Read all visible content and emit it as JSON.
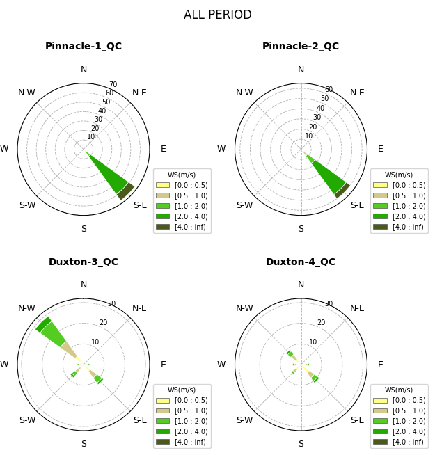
{
  "title": "ALL PERIOD",
  "chart_data": [
    {
      "type": "windrose",
      "title": "Pinnacle-1_QC",
      "stacked": true,
      "grid": true,
      "legend": "lower right",
      "legend_title": "WS(m/s)",
      "categories": [
        "N",
        "N-E",
        "E",
        "S-E",
        "S",
        "S-W",
        "W",
        "N-W"
      ],
      "ylim": [
        0,
        70
      ],
      "yticks": [
        10,
        20,
        30,
        40,
        50,
        60,
        70
      ],
      "series": [
        {
          "name": "[0.0 : 0.5)",
          "color": "#ffff88",
          "values": [
            0,
            0,
            0,
            1,
            0,
            0,
            0,
            0
          ]
        },
        {
          "name": "[0.5 : 1.0)",
          "color": "#d4c98a",
          "values": [
            0,
            0,
            0,
            2,
            0,
            0,
            0,
            0
          ]
        },
        {
          "name": "[1.0 : 2.0)",
          "color": "#55cc22",
          "values": [
            0,
            0,
            0,
            6,
            0,
            0,
            0,
            0
          ]
        },
        {
          "name": "[2.0 : 4.0)",
          "color": "#22aa00",
          "values": [
            0,
            0,
            0,
            50,
            0,
            0,
            0,
            0
          ]
        },
        {
          "name": "[4.0 : inf)",
          "color": "#4a5a1a",
          "values": [
            0,
            0,
            0,
            8,
            0,
            0,
            0,
            0
          ]
        }
      ]
    },
    {
      "type": "windrose",
      "title": "Pinnacle-2_QC",
      "stacked": true,
      "grid": true,
      "legend": "lower right",
      "legend_title": "WS(m/s)",
      "categories": [
        "N",
        "N-E",
        "E",
        "S-E",
        "S",
        "S-W",
        "W",
        "N-W"
      ],
      "ylim": [
        0,
        65
      ],
      "yticks": [
        10,
        20,
        30,
        40,
        50,
        60
      ],
      "series": [
        {
          "name": "[0.0 : 0.5)",
          "color": "#ffff88",
          "values": [
            0,
            0,
            0,
            3,
            0,
            0,
            0,
            0
          ]
        },
        {
          "name": "[0.5 : 1.0)",
          "color": "#d4c98a",
          "values": [
            0,
            0,
            0,
            5,
            0,
            0,
            0,
            0
          ]
        },
        {
          "name": "[1.0 : 2.0)",
          "color": "#55cc22",
          "values": [
            0,
            0,
            0,
            9,
            0,
            0,
            0,
            0
          ]
        },
        {
          "name": "[2.0 : 4.0)",
          "color": "#22aa00",
          "values": [
            0,
            0,
            0,
            38,
            0,
            0,
            0,
            0
          ]
        },
        {
          "name": "[4.0 : inf)",
          "color": "#4a5a1a",
          "values": [
            0,
            0,
            0,
            5,
            0,
            0,
            0,
            0
          ]
        }
      ]
    },
    {
      "type": "windrose",
      "title": "Duxton-3_QC",
      "stacked": true,
      "grid": true,
      "legend": "lower right",
      "legend_title": "WS(m/s)",
      "categories": [
        "N",
        "N-E",
        "E",
        "S-E",
        "S",
        "S-W",
        "W",
        "N-W"
      ],
      "ylim": [
        0,
        32
      ],
      "yticks": [
        10,
        20,
        30
      ],
      "series": [
        {
          "name": "[0.0 : 0.5)",
          "color": "#ffff88",
          "values": [
            0,
            0,
            1,
            4,
            0,
            2,
            1,
            5
          ]
        },
        {
          "name": "[0.5 : 1.0)",
          "color": "#d4c98a",
          "values": [
            0,
            0,
            1,
            4,
            0,
            3,
            1,
            9
          ]
        },
        {
          "name": "[1.0 : 2.0)",
          "color": "#55cc22",
          "values": [
            0,
            0,
            1,
            3,
            0,
            2,
            1,
            12
          ]
        },
        {
          "name": "[2.0 : 4.0)",
          "color": "#22aa00",
          "values": [
            0,
            0,
            0,
            1,
            0,
            1,
            0,
            3
          ]
        },
        {
          "name": "[4.0 : inf)",
          "color": "#4a5a1a",
          "values": [
            0,
            0,
            0,
            0,
            0,
            0,
            0,
            0
          ]
        }
      ]
    },
    {
      "type": "windrose",
      "title": "Duxton-4_QC",
      "stacked": true,
      "grid": true,
      "legend": "lower right",
      "legend_title": "WS(m/s)",
      "categories": [
        "N",
        "N-E",
        "E",
        "S-E",
        "S",
        "S-W",
        "W",
        "N-W"
      ],
      "ylim": [
        0,
        32
      ],
      "yticks": [
        10,
        20,
        30
      ],
      "series": [
        {
          "name": "[0.0 : 0.5)",
          "color": "#ffff88",
          "values": [
            0,
            0,
            2,
            5,
            0,
            3,
            2,
            3
          ]
        },
        {
          "name": "[0.5 : 1.0)",
          "color": "#d4c98a",
          "values": [
            0,
            0,
            1,
            3,
            0,
            2,
            1,
            3
          ]
        },
        {
          "name": "[1.0 : 2.0)",
          "color": "#55cc22",
          "values": [
            0,
            0,
            1,
            2,
            0,
            1,
            1,
            2
          ]
        },
        {
          "name": "[2.0 : 4.0)",
          "color": "#22aa00",
          "values": [
            0,
            0,
            0,
            1,
            0,
            0,
            0,
            1
          ]
        },
        {
          "name": "[4.0 : inf)",
          "color": "#4a5a1a",
          "values": [
            0,
            0,
            0,
            0,
            0,
            0,
            0,
            0
          ]
        }
      ]
    }
  ]
}
